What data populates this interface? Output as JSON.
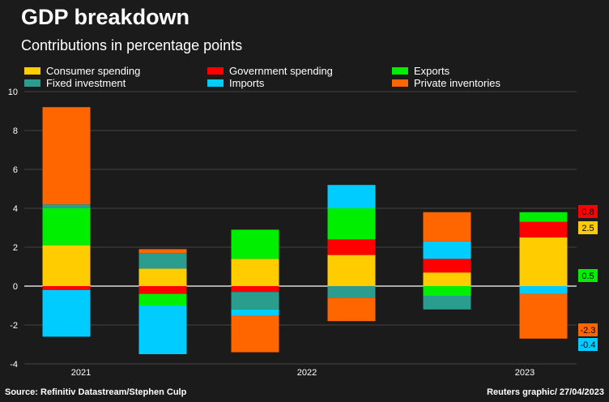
{
  "title": "GDP breakdown",
  "subtitle": "Contributions in percentage points",
  "source": "Source: Refinitiv Datastream/Stephen Culp",
  "credit": "Reuters graphic/ 27/04/2023",
  "chart_data": {
    "type": "bar",
    "stacked": true,
    "ylim": [
      -4,
      10
    ],
    "yticks": [
      "10",
      "8",
      "6",
      "4",
      "2",
      "0",
      "-2",
      "-4"
    ],
    "xlabels": [
      "2021",
      "2022",
      "2023"
    ],
    "grid": true,
    "legend_placement": "top",
    "series": [
      {
        "name": "Consumer spending",
        "color": "#ffcc00",
        "values": [
          2.1,
          0.9,
          1.4,
          1.6,
          0.7,
          2.5
        ]
      },
      {
        "name": "Government spending",
        "color": "#ff0000",
        "values": [
          -0.2,
          -0.4,
          -0.3,
          0.8,
          0.7,
          0.8
        ]
      },
      {
        "name": "Exports",
        "color": "#00ee00",
        "values": [
          1.9,
          -0.6,
          1.5,
          1.6,
          -0.5,
          0.5
        ]
      },
      {
        "name": "Fixed investment",
        "color": "#2a9d8f",
        "values": [
          0.2,
          0.8,
          -0.9,
          -0.6,
          -0.7,
          0.0
        ]
      },
      {
        "name": "Imports",
        "color": "#00ccff",
        "values": [
          -2.4,
          -2.5,
          -0.3,
          1.2,
          0.9,
          -0.4
        ]
      },
      {
        "name": "Private inventories",
        "color": "#ff6600",
        "values": [
          5.0,
          0.2,
          -1.9,
          -1.2,
          1.5,
          -2.3
        ]
      }
    ],
    "annotations": [
      {
        "text": "0.8",
        "series": 1
      },
      {
        "text": "2.5",
        "series": 0
      },
      {
        "text": "0.5",
        "series": 2
      },
      {
        "text": "-2.3",
        "series": 5
      },
      {
        "text": "-0.4",
        "series": 4
      }
    ]
  }
}
